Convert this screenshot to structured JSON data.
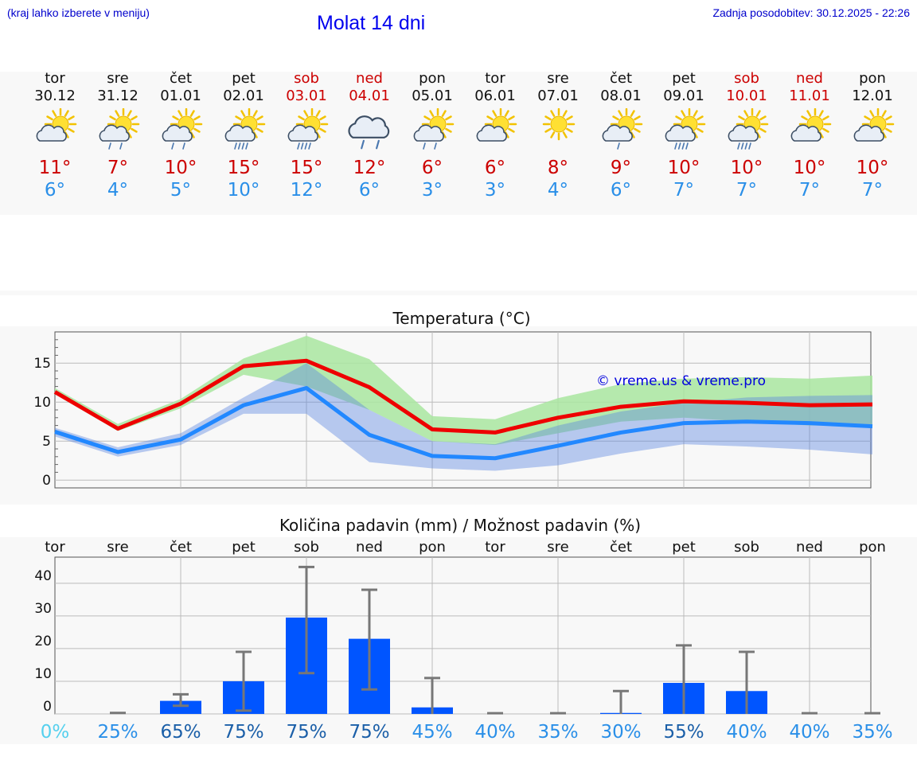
{
  "header": {
    "hint": "(kraj lahko izberete v meniju)",
    "title": "Molat 14 dni",
    "updated": "Zadnja posodobitev: 30.12.2025 - 22:26"
  },
  "colors": {
    "max_temp": "#cc0000",
    "min_temp": "#2a8fe8",
    "max_line": "#ee0000",
    "min_line": "#2288ff",
    "max_band": "#a9e6a0",
    "min_band": "#aac4f0",
    "bar": "#0055ff",
    "weekend": "#cc0000"
  },
  "forecast": [
    {
      "day": "tor",
      "date": "30.12",
      "icon": "sun-cloud-icon",
      "max": "11°",
      "min": "6°",
      "weekend": false
    },
    {
      "day": "sre",
      "date": "31.12",
      "icon": "sun-cloud-rain-icon",
      "max": "7°",
      "min": "4°",
      "weekend": false
    },
    {
      "day": "čet",
      "date": "01.01",
      "icon": "sun-cloud-rain-icon",
      "max": "10°",
      "min": "5°",
      "weekend": false
    },
    {
      "day": "pet",
      "date": "02.01",
      "icon": "sun-cloud-heavy-rain-icon",
      "max": "15°",
      "min": "10°",
      "weekend": false
    },
    {
      "day": "sob",
      "date": "03.01",
      "icon": "sun-cloud-heavy-rain-icon",
      "max": "15°",
      "min": "12°",
      "weekend": true
    },
    {
      "day": "ned",
      "date": "04.01",
      "icon": "cloud-rain-icon",
      "max": "12°",
      "min": "6°",
      "weekend": true
    },
    {
      "day": "pon",
      "date": "05.01",
      "icon": "sun-cloud-rain-icon",
      "max": "6°",
      "min": "3°",
      "weekend": false
    },
    {
      "day": "tor",
      "date": "06.01",
      "icon": "sun-cloud-icon",
      "max": "6°",
      "min": "3°",
      "weekend": false
    },
    {
      "day": "sre",
      "date": "07.01",
      "icon": "sun-icon",
      "max": "8°",
      "min": "4°",
      "weekend": false
    },
    {
      "day": "čet",
      "date": "08.01",
      "icon": "sun-cloud-light-rain-icon",
      "max": "9°",
      "min": "6°",
      "weekend": false
    },
    {
      "day": "pet",
      "date": "09.01",
      "icon": "sun-cloud-heavy-rain-icon",
      "max": "10°",
      "min": "7°",
      "weekend": false
    },
    {
      "day": "sob",
      "date": "10.01",
      "icon": "sun-cloud-heavy-rain-icon",
      "max": "10°",
      "min": "7°",
      "weekend": true
    },
    {
      "day": "ned",
      "date": "11.01",
      "icon": "sun-cloud-icon",
      "max": "10°",
      "min": "7°",
      "weekend": true
    },
    {
      "day": "pon",
      "date": "12.01",
      "icon": "sun-cloud-icon",
      "max": "10°",
      "min": "7°",
      "weekend": false
    }
  ],
  "chart_data": [
    {
      "type": "line",
      "title": "Temperatura (°C)",
      "watermark": "© vreme.us & vreme.pro",
      "x": [
        "30.12",
        "31.12",
        "01.01",
        "02.01",
        "03.01",
        "04.01",
        "05.01",
        "06.01",
        "07.01",
        "08.01",
        "09.01",
        "10.01",
        "11.01",
        "12.01"
      ],
      "ylim": [
        -1,
        19
      ],
      "yticks": [
        0,
        5,
        10,
        15
      ],
      "series": [
        {
          "name": "max",
          "values": [
            11.3,
            6.6,
            9.8,
            14.6,
            15.3,
            11.9,
            6.5,
            6.1,
            8.0,
            9.4,
            10.1,
            9.9,
            9.6,
            9.7
          ]
        },
        {
          "name": "min",
          "values": [
            6.2,
            3.6,
            5.2,
            9.6,
            11.8,
            5.8,
            3.1,
            2.8,
            4.4,
            6.1,
            7.3,
            7.5,
            7.3,
            6.9
          ]
        }
      ],
      "bands": [
        {
          "name": "max_range",
          "low": [
            11.0,
            6.3,
            9.2,
            13.5,
            12.0,
            9.0,
            5.0,
            4.5,
            6.0,
            7.5,
            8.0,
            7.5,
            7.0,
            7.0
          ],
          "high": [
            11.8,
            7.2,
            10.4,
            15.6,
            18.5,
            15.5,
            8.2,
            7.8,
            10.5,
            12.3,
            13.0,
            13.2,
            13.0,
            13.4
          ]
        },
        {
          "name": "min_range",
          "low": [
            5.6,
            3.0,
            4.5,
            8.5,
            8.5,
            2.3,
            1.5,
            1.2,
            1.9,
            3.4,
            4.6,
            4.3,
            3.9,
            3.3
          ],
          "high": [
            6.7,
            4.2,
            6.0,
            10.6,
            15.0,
            9.0,
            5.0,
            4.6,
            7.0,
            8.8,
            9.9,
            10.6,
            10.8,
            10.9
          ]
        }
      ]
    },
    {
      "type": "bar",
      "title": "Količina padavin (mm) / Možnost padavin (%)",
      "categories": [
        "tor",
        "sre",
        "čet",
        "pet",
        "sob",
        "ned",
        "pon",
        "tor",
        "sre",
        "čet",
        "pet",
        "sob",
        "ned",
        "pon"
      ],
      "values": [
        0,
        0,
        4,
        10,
        29.5,
        23,
        2,
        0,
        0,
        0.3,
        9.5,
        7,
        0,
        0
      ],
      "error_low": [
        0,
        0,
        2.5,
        1,
        12.5,
        7.5,
        0,
        0,
        0,
        0,
        0,
        0,
        0,
        0
      ],
      "error_high": [
        0,
        0.3,
        6,
        19,
        45,
        38,
        11,
        0.2,
        0.2,
        7,
        21,
        19,
        0.2,
        0.2
      ],
      "ylim": [
        0,
        48
      ],
      "yticks": [
        0,
        10,
        20,
        30,
        40
      ],
      "probability": [
        "0%",
        "25%",
        "65%",
        "75%",
        "75%",
        "75%",
        "45%",
        "40%",
        "35%",
        "30%",
        "55%",
        "40%",
        "40%",
        "35%"
      ],
      "probability_colors": [
        "#55d0ee",
        "#2a8fe8",
        "#1b5fa8",
        "#1b5fa8",
        "#1b5fa8",
        "#1b5fa8",
        "#2a8fe8",
        "#2a8fe8",
        "#2a8fe8",
        "#2a8fe8",
        "#1b5fa8",
        "#2a8fe8",
        "#2a8fe8",
        "#2a8fe8"
      ]
    }
  ]
}
